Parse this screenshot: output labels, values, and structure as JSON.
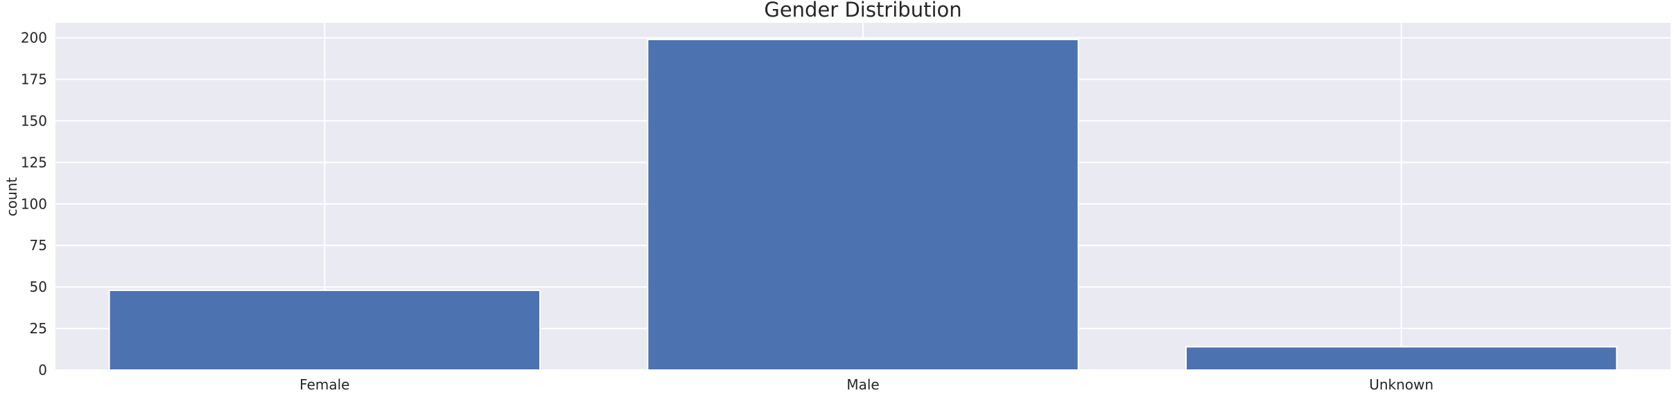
{
  "chart_data": {
    "type": "bar",
    "title": "Gender Distribution",
    "xlabel": "",
    "ylabel": "count",
    "categories": [
      "Female",
      "Male",
      "Unknown"
    ],
    "values": [
      48,
      199,
      14
    ],
    "ylim": [
      0,
      209
    ],
    "yticks": [
      0,
      25,
      50,
      75,
      100,
      125,
      150,
      175,
      200
    ],
    "grid": true,
    "bar_color": "#4c72b0",
    "background_color": "#eaeaf2"
  }
}
